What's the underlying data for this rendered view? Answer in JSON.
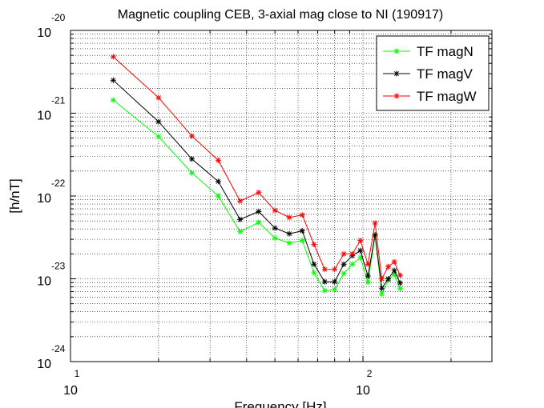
{
  "chart_data": {
    "type": "line",
    "title": "Magnetic coupling CEB, 3-axial mag close to NI (190917)",
    "x_label": "Frequency [Hz]",
    "y_label": "[h/nT]",
    "x_scale": "log",
    "y_scale": "log",
    "grid": true,
    "minor_grid": true,
    "legend_position": "upper right",
    "x": [
      14,
      20,
      26,
      32,
      38,
      44,
      50,
      56,
      62,
      68,
      74,
      80,
      86,
      92,
      98,
      104,
      110,
      116,
      122,
      128,
      134
    ],
    "series": [
      {
        "name": "TF magN",
        "color": "#00ff00",
        "values": [
          1.44e-21,
          5.2e-22,
          1.9e-22,
          1e-22,
          3.7e-23,
          4.8e-23,
          3.1e-23,
          2.7e-23,
          2.9e-23,
          1.18e-23,
          7.2e-24,
          7.4e-24,
          1.16e-23,
          1.5e-23,
          1.8e-23,
          9.1e-24,
          3.3e-23,
          6.6e-24,
          9.7e-24,
          1.13e-23,
          7.6e-24
        ]
      },
      {
        "name": "TF magV",
        "color": "#000000",
        "values": [
          2.5e-21,
          7.9e-22,
          2.8e-22,
          1.5e-22,
          5.2e-23,
          6.5e-23,
          4.1e-23,
          3.5e-23,
          3.8e-23,
          1.5e-23,
          9.2e-24,
          9.2e-24,
          1.5e-23,
          1.9e-23,
          2.2e-23,
          1.08e-23,
          3.4e-23,
          7.7e-24,
          1e-23,
          1.26e-23,
          8.9e-24
        ]
      },
      {
        "name": "TF magW",
        "color": "#ff0000",
        "values": [
          4.8e-21,
          1.54e-21,
          5.3e-22,
          2.7e-22,
          8.7e-23,
          1.1e-22,
          6.7e-23,
          5.5e-23,
          5.9e-23,
          2.6e-23,
          1.3e-23,
          1.3e-23,
          2e-23,
          2e-23,
          2.9e-23,
          1.5e-23,
          4.7e-23,
          1e-23,
          1.4e-23,
          1.6e-23,
          1.1e-23
        ]
      }
    ],
    "xlim": [
      10,
      276
    ],
    "xticks": [
      {
        "value": 10,
        "label": "10",
        "exponent": "1"
      },
      {
        "value": 100,
        "label": "10",
        "exponent": "2"
      }
    ],
    "ylim": [
      1e-24,
      1e-20
    ],
    "yticks": [
      {
        "value": 1e-20,
        "label": "10",
        "exponent": "-20"
      },
      {
        "value": 1e-21,
        "label": "10",
        "exponent": "-21"
      },
      {
        "value": 1e-22,
        "label": "10",
        "exponent": "-22"
      },
      {
        "value": 1e-23,
        "label": "10",
        "exponent": "-23"
      },
      {
        "value": 1e-24,
        "label": "10",
        "exponent": "-24"
      }
    ]
  }
}
